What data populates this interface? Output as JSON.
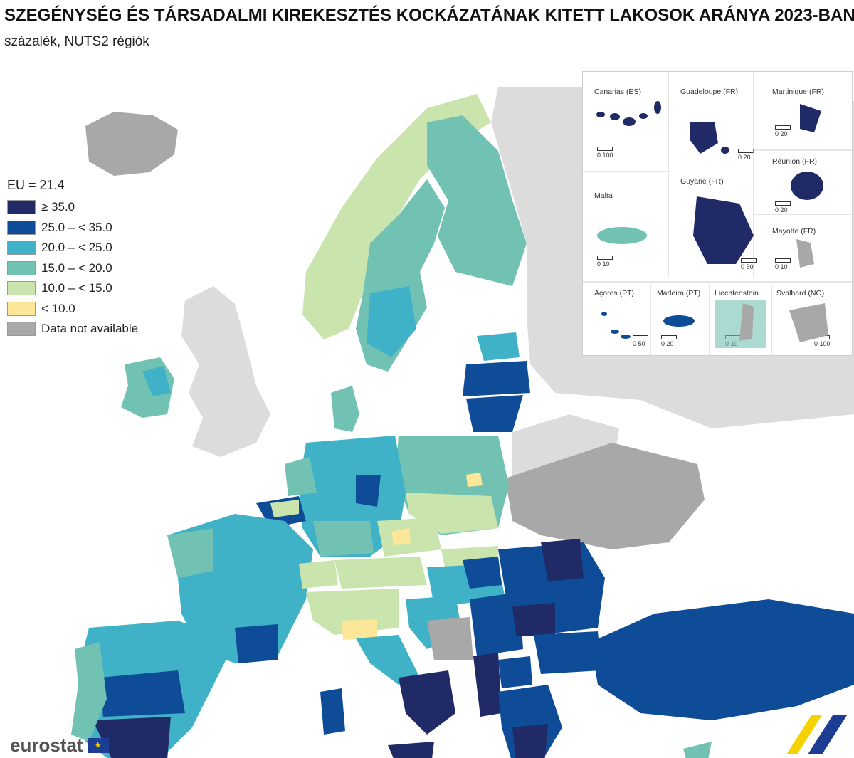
{
  "title": "SZEGÉNYSÉG ÉS TÁRSADALMI KIREKESZTÉS KOCKÁZATÁNAK KITETT LAKOSOK ARÁNYA 2023-BAN",
  "subtitle": "százalék, NUTS2 régiók",
  "legend": {
    "header": "EU = 21.4",
    "items": [
      {
        "label": "≥ 35.0",
        "color": "#1f2a66"
      },
      {
        "label": "25.0 – < 35.0",
        "color": "#0f4c97"
      },
      {
        "label": "20.0 – < 25.0",
        "color": "#3fb2c8"
      },
      {
        "label": "15.0 – < 20.0",
        "color": "#72c2b4"
      },
      {
        "label": "10.0 – < 15.0",
        "color": "#c9e4ad"
      },
      {
        "label": "< 10.0",
        "color": "#fbe797"
      },
      {
        "label": "Data not available",
        "color": "#a8a8a8"
      }
    ]
  },
  "insets": [
    {
      "label": "Canarias (ES)",
      "scale": "0   100"
    },
    {
      "label": "Guadeloupe (FR)",
      "scale": "0   20"
    },
    {
      "label": "Martinique (FR)",
      "scale": "0   20"
    },
    {
      "label": "Réunion (FR)",
      "scale": "0   20"
    },
    {
      "label": "Malta",
      "scale": "0   10"
    },
    {
      "label": "Guyane (FR)",
      "scale": "0 50"
    },
    {
      "label": "Mayotte (FR)",
      "scale": "0  10"
    },
    {
      "label": "Açores (PT)",
      "scale": "0   50"
    },
    {
      "label": "Madeira (PT)",
      "scale": "0  20"
    },
    {
      "label": "Liechtenstein",
      "scale": "0   10"
    },
    {
      "label": "Svalbard (NO)",
      "scale": "0 100"
    }
  ],
  "logo": {
    "text": "eurostat"
  }
}
